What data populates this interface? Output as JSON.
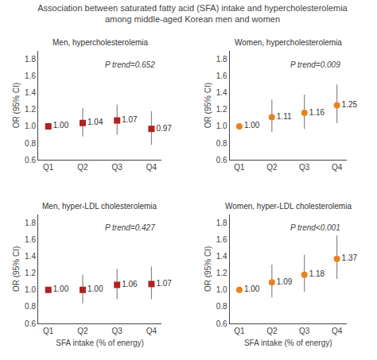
{
  "title": "Association between saturated fatty acid (SFA) intake and hypercholesterolemia\namong middle-aged Korean men and women",
  "chart_data": [
    {
      "type": "scatter",
      "title": "Men, hypercholesterolemia",
      "annotation": "P trend=0.652",
      "categories": [
        "Q1",
        "Q2",
        "Q3",
        "Q4"
      ],
      "ylabel": "OR (95% CI)",
      "ylim": [
        0.6,
        1.9
      ],
      "yticks": [
        0.6,
        0.8,
        {
          "value": 1,
          "label": "1.0"
        },
        1.2,
        1.4,
        1.6,
        1.8
      ],
      "grid": false,
      "data_labels": true,
      "series": [
        {
          "color": "#b22222",
          "marker": "square",
          "values": [
            1.0,
            1.04,
            1.07,
            0.97
          ],
          "value_labels": [
            "1.00",
            "1.04",
            "1.07",
            "0.97"
          ],
          "ci_lower": [
            1.0,
            0.88,
            0.9,
            0.78
          ],
          "ci_upper": [
            1.0,
            1.22,
            1.26,
            1.18
          ]
        }
      ]
    },
    {
      "type": "scatter",
      "title": "Women, hypercholesterolemia",
      "annotation": "P trend=0.009",
      "categories": [
        "Q1",
        "Q2",
        "Q3",
        "Q4"
      ],
      "ylabel": "OR (95% CI)",
      "ylim": [
        0.6,
        1.9
      ],
      "yticks": [
        0.6,
        0.8,
        {
          "value": 1,
          "label": "1.0"
        },
        1.2,
        1.4,
        1.6,
        1.8
      ],
      "grid": false,
      "data_labels": true,
      "series": [
        {
          "color": "#e8821e",
          "marker": "circle",
          "values": [
            1.0,
            1.11,
            1.16,
            1.25
          ],
          "value_labels": [
            "1.00",
            "1.11",
            "1.16",
            "1.25"
          ],
          "ci_lower": [
            1.0,
            0.93,
            0.97,
            1.04
          ],
          "ci_upper": [
            1.0,
            1.32,
            1.38,
            1.5
          ]
        }
      ]
    },
    {
      "type": "scatter",
      "title": "Men, hyper-LDL cholesterolemia",
      "annotation": "P trend=0.427",
      "categories": [
        "Q1",
        "Q2",
        "Q3",
        "Q4"
      ],
      "xlabel": "SFA intake (% of energy)",
      "ylabel": "OR (95% CI)",
      "ylim": [
        0.6,
        1.9
      ],
      "yticks": [
        0.6,
        0.8,
        {
          "value": 1,
          "label": "1.0"
        },
        1.2,
        1.4,
        1.6,
        1.8
      ],
      "grid": false,
      "data_labels": true,
      "series": [
        {
          "color": "#b22222",
          "marker": "square",
          "values": [
            1.0,
            1.0,
            1.06,
            1.07
          ],
          "value_labels": [
            "1.00",
            "1.00",
            "1.06",
            "1.07"
          ],
          "ci_lower": [
            1.0,
            0.84,
            0.89,
            0.89
          ],
          "ci_upper": [
            1.0,
            1.18,
            1.25,
            1.28
          ]
        }
      ]
    },
    {
      "type": "scatter",
      "title": "Women, hyper-LDL cholesterolemia",
      "annotation": "P trend<0.001",
      "categories": [
        "Q1",
        "Q2",
        "Q3",
        "Q4"
      ],
      "xlabel": "SFA intake (% of energy)",
      "ylabel": "OR (95% CI)",
      "ylim": [
        0.6,
        1.9
      ],
      "yticks": [
        0.6,
        0.8,
        {
          "value": 1,
          "label": "1.0"
        },
        1.2,
        1.4,
        1.6,
        1.8
      ],
      "grid": false,
      "data_labels": true,
      "series": [
        {
          "color": "#e8821e",
          "marker": "circle",
          "values": [
            1.0,
            1.09,
            1.18,
            1.37
          ],
          "value_labels": [
            "1.00",
            "1.09",
            "1.18",
            "1.37"
          ],
          "ci_lower": [
            1.0,
            0.91,
            0.98,
            1.13
          ],
          "ci_upper": [
            1.0,
            1.3,
            1.42,
            1.65
          ]
        }
      ]
    }
  ]
}
